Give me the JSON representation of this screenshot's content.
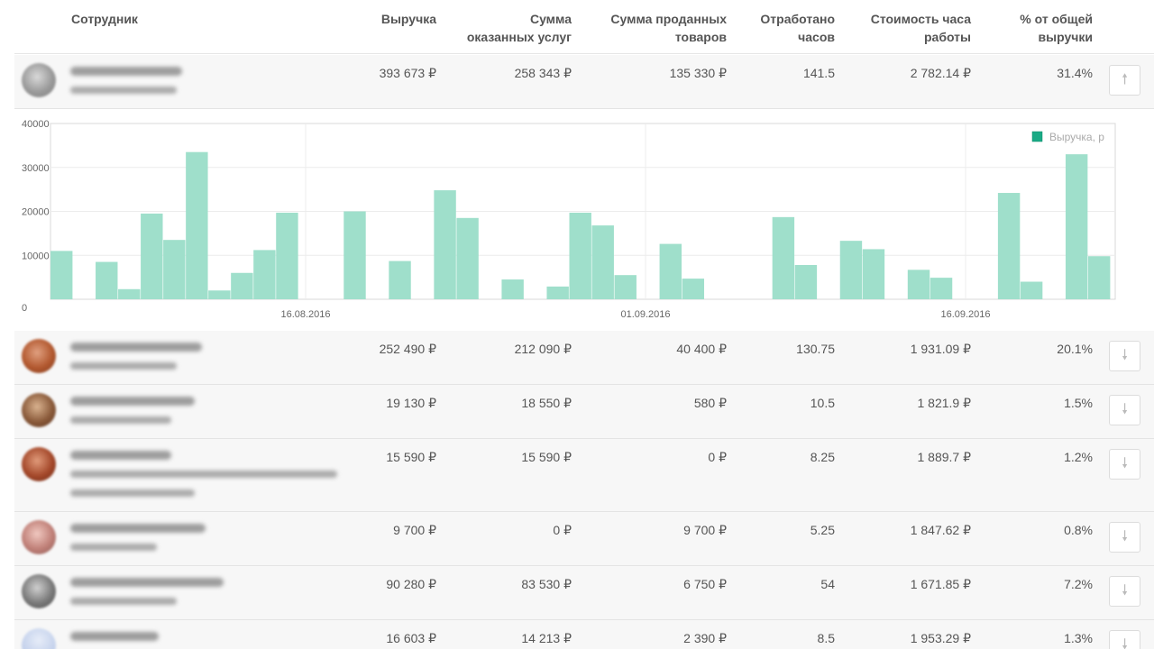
{
  "columns": {
    "employee": "Сотрудник",
    "revenue": "Выручка",
    "services_l1": "Сумма",
    "services_l2": "оказанных услуг",
    "goods_l1": "Сумма проданных",
    "goods_l2": "товаров",
    "hours_l1": "Отработано",
    "hours_l2": "часов",
    "hour_cost_l1": "Стоимость часа",
    "hour_cost_l2": "работы",
    "share_l1": "% от общей",
    "share_l2": "выручки"
  },
  "rows": [
    {
      "revenue": "393 673 ₽",
      "services": "258 343 ₽",
      "goods": "135 330 ₽",
      "hours": "141.5",
      "hour_cost": "2 782.14 ₽",
      "share": "31.4%",
      "sort_icon": "arrow-up-icon",
      "glyph": "🠕"
    },
    {
      "revenue": "252 490 ₽",
      "services": "212 090 ₽",
      "goods": "40 400 ₽",
      "hours": "130.75",
      "hour_cost": "1 931.09 ₽",
      "share": "20.1%",
      "sort_icon": "arrow-down-icon",
      "glyph": "🠗"
    },
    {
      "revenue": "19 130 ₽",
      "services": "18 550 ₽",
      "goods": "580 ₽",
      "hours": "10.5",
      "hour_cost": "1 821.9 ₽",
      "share": "1.5%",
      "sort_icon": "arrow-down-icon",
      "glyph": "🠗"
    },
    {
      "revenue": "15 590 ₽",
      "services": "15 590 ₽",
      "goods": "0 ₽",
      "hours": "8.25",
      "hour_cost": "1 889.7 ₽",
      "share": "1.2%",
      "sort_icon": "arrow-down-icon",
      "glyph": "🠗"
    },
    {
      "revenue": "9 700 ₽",
      "services": "0 ₽",
      "goods": "9 700 ₽",
      "hours": "5.25",
      "hour_cost": "1 847.62 ₽",
      "share": "0.8%",
      "sort_icon": "arrow-down-icon",
      "glyph": "🠗"
    },
    {
      "revenue": "90 280 ₽",
      "services": "83 530 ₽",
      "goods": "6 750 ₽",
      "hours": "54",
      "hour_cost": "1 671.85 ₽",
      "share": "7.2%",
      "sort_icon": "arrow-down-icon",
      "glyph": "🠗"
    },
    {
      "revenue": "16 603 ₽",
      "services": "14 213 ₽",
      "goods": "2 390 ₽",
      "hours": "8.5",
      "hour_cost": "1 953.29 ₽",
      "share": "1.3%",
      "sort_icon": "arrow-down-icon",
      "glyph": "🠗"
    }
  ],
  "colors": {
    "bar": "#9fdfcb",
    "legend_swatch": "#1aaa85",
    "grid": "#ececec"
  },
  "chart_data": {
    "type": "bar",
    "legend": "Выручка, р",
    "legend_position": "top-right",
    "grid": true,
    "ylim": [
      0,
      40000
    ],
    "yticks": [
      "40000",
      "30000",
      "20000",
      "10000",
      "0"
    ],
    "xticks": [
      "16.08.2016",
      "01.09.2016",
      "16.09.2016"
    ],
    "values": [
      11000,
      0,
      8500,
      2300,
      19500,
      13500,
      33500,
      2000,
      6000,
      11200,
      19700,
      0,
      0,
      20000,
      0,
      8700,
      0,
      24800,
      18500,
      0,
      4500,
      0,
      2900,
      19700,
      16800,
      5500,
      0,
      12600,
      4700,
      0,
      0,
      0,
      18700,
      7800,
      0,
      13300,
      11400,
      0,
      6700,
      4900,
      0,
      0,
      24200,
      4000,
      0,
      33000,
      9800
    ]
  }
}
